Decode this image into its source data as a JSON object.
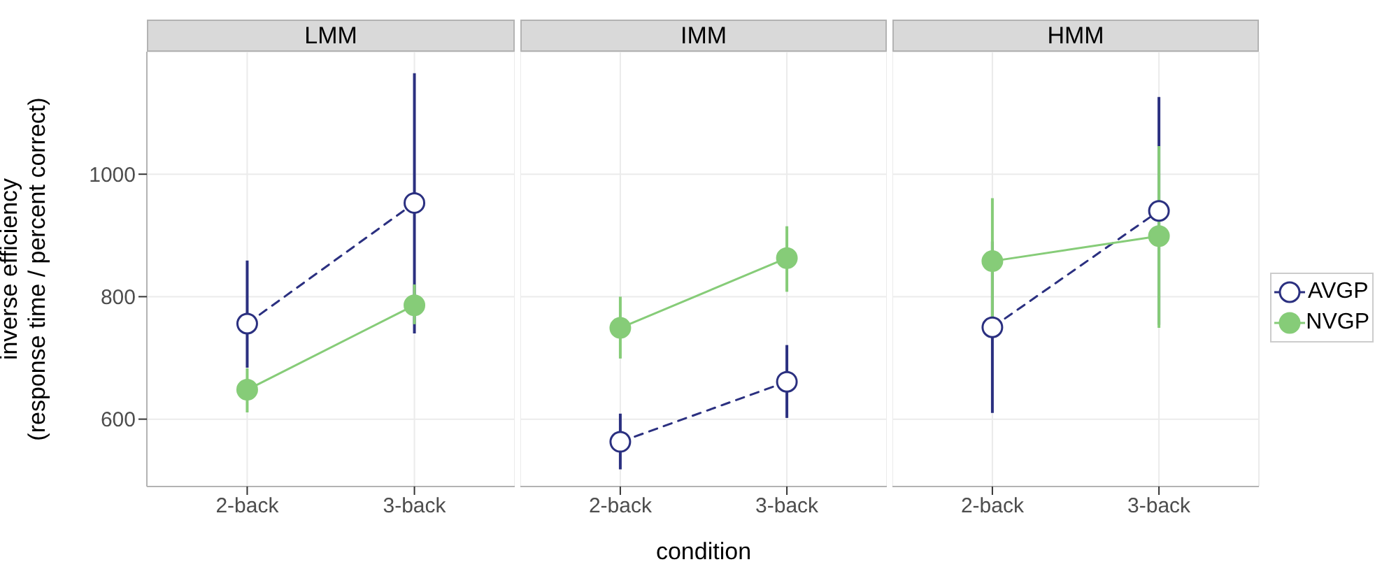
{
  "chart_data": [
    {
      "type": "line",
      "title": "LMM",
      "ylabel": "inverse efficiency\n(response time / percent correct)",
      "categories": [
        "2-back",
        "3-back"
      ],
      "ylim": [
        490,
        1200
      ],
      "yticks": [
        600,
        800,
        1000
      ],
      "grid": true,
      "marker": "circle",
      "series": [
        {
          "color": "#2b3080",
          "line_style": "dashed",
          "values": [
            756,
            953
          ],
          "errors": [
            [
              684,
              859
            ],
            [
              740,
              1165
            ]
          ]
        },
        {
          "color": "#86cc78",
          "line_style": "solid",
          "values": [
            648,
            786
          ],
          "errors": [
            [
              611,
              683
            ],
            [
              755,
              820
            ]
          ]
        }
      ]
    },
    {
      "type": "line",
      "title": "IMM",
      "xlabel": "condition",
      "categories": [
        "2-back",
        "3-back"
      ],
      "ylim": [
        490,
        1200
      ],
      "yticks": [
        600,
        800,
        1000
      ],
      "grid": true,
      "marker": "circle",
      "tick_labels": "x",
      "series": [
        {
          "color": "#2b3080",
          "line_style": "dashed",
          "values": [
            563,
            661
          ],
          "errors": [
            [
              518,
              609
            ],
            [
              602,
              721
            ]
          ]
        },
        {
          "color": "#86cc78",
          "line_style": "solid",
          "values": [
            749,
            863
          ],
          "errors": [
            [
              699,
              800
            ],
            [
              808,
              915
            ]
          ]
        }
      ]
    },
    {
      "type": "line",
      "title": "HMM",
      "categories": [
        "2-back",
        "3-back"
      ],
      "ylim": [
        490,
        1200
      ],
      "yticks": [
        600,
        800,
        1000
      ],
      "grid": true,
      "marker": "circle",
      "tick_labels": "x",
      "legend": "right",
      "series": [
        {
          "name": "AVGP",
          "color": "#2b3080",
          "line_style": "dashed",
          "values": [
            750,
            940
          ],
          "errors": [
            [
              610,
              890
            ],
            [
              754,
              1126
            ]
          ]
        },
        {
          "name": "NVGP",
          "color": "#86cc78",
          "line_style": "solid",
          "values": [
            858,
            899
          ],
          "errors": [
            [
              755,
              961
            ],
            [
              749,
              1046
            ]
          ]
        }
      ]
    }
  ]
}
